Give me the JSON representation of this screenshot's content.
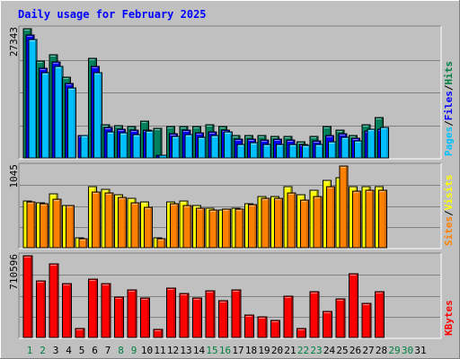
{
  "chart_data": [
    {
      "type": "bar",
      "title": "Daily usage for February 2025",
      "ymax_label": "27343",
      "ylim": [
        0,
        27343
      ],
      "grid": true,
      "x_labels": [
        "1",
        "2",
        "3",
        "4",
        "5",
        "6",
        "7",
        "8",
        "9",
        "10",
        "11",
        "12",
        "13",
        "14",
        "15",
        "16",
        "17",
        "18",
        "19",
        "20",
        "21",
        "22",
        "23",
        "24",
        "25",
        "26",
        "27",
        "28",
        "29",
        "30",
        "31"
      ],
      "weekend_days": [
        1,
        2,
        8,
        9,
        15,
        16,
        22,
        23,
        29,
        30
      ],
      "axis_legend": [
        {
          "label": "Pages",
          "color": "#00c0ff"
        },
        {
          "label": "/",
          "color": "#000000"
        },
        {
          "label": "Files",
          "color": "#0000ff"
        },
        {
          "label": "/",
          "color": "#000000"
        },
        {
          "label": "Hits",
          "color": "#008040"
        }
      ],
      "series": [
        {
          "name": "Hits",
          "color": "#00805c",
          "values": [
            27343,
            20500,
            21900,
            17000,
            null,
            21000,
            7000,
            6800,
            6700,
            7800,
            6300,
            6700,
            6600,
            6600,
            7000,
            6600,
            4800,
            4800,
            4700,
            4600,
            4500,
            3500,
            4500,
            6600,
            5900,
            4800,
            7000,
            8600
          ]
        },
        {
          "name": "Files",
          "color": "#0000ff",
          "values": [
            26100,
            19000,
            20400,
            15700,
            4800,
            19300,
            6400,
            6100,
            5800,
            5900,
            600,
            5200,
            5800,
            5300,
            5600,
            5800,
            4000,
            4000,
            3800,
            4000,
            3800,
            2900,
            3600,
            4700,
            5100,
            4100,
            5700,
            6100
          ]
        },
        {
          "name": "Pages",
          "color": "#00bfff",
          "values": [
            25000,
            18100,
            19400,
            14800,
            4800,
            18100,
            5500,
            5400,
            4900,
            5700,
            600,
            4500,
            5000,
            4400,
            4800,
            5600,
            2900,
            3300,
            2800,
            2900,
            2800,
            2700,
            2800,
            3500,
            4300,
            3700,
            6000,
            6400
          ]
        }
      ]
    },
    {
      "type": "bar",
      "ymax_label": "1045",
      "ylim": [
        0,
        1045
      ],
      "grid": true,
      "axis_legend": [
        {
          "label": "Sites",
          "color": "#ff8000"
        },
        {
          "label": "/",
          "color": "#000000"
        },
        {
          "label": "Visits",
          "color": "#ffff00"
        }
      ],
      "series": [
        {
          "name": "Visits",
          "color": "#ffff00",
          "values": [
            600,
            570,
            690,
            540,
            130,
            780,
            750,
            680,
            630,
            580,
            130,
            590,
            600,
            540,
            500,
            480,
            500,
            560,
            660,
            660,
            785,
            680,
            730,
            860,
            890,
            780,
            785,
            780
          ]
        },
        {
          "name": "Sites",
          "color": "#ff8000",
          "values": [
            580,
            560,
            620,
            540,
            120,
            710,
            700,
            640,
            570,
            520,
            120,
            560,
            540,
            510,
            480,
            490,
            490,
            550,
            630,
            630,
            700,
            610,
            650,
            780,
            1045,
            720,
            730,
            730
          ]
        }
      ]
    },
    {
      "type": "bar",
      "ymax_label": "710596",
      "ylim": [
        0,
        710596
      ],
      "grid": true,
      "axis_legend": [
        {
          "label": "KBytes",
          "color": "#ff0000"
        }
      ],
      "series": [
        {
          "name": "KBytes",
          "color": "#ff0000",
          "values": [
            710596,
            493000,
            638000,
            470000,
            80000,
            510000,
            470000,
            355000,
            415000,
            345000,
            70000,
            428000,
            380000,
            345000,
            407000,
            320000,
            413000,
            192000,
            183000,
            145000,
            362000,
            80000,
            402000,
            225000,
            335000,
            555000,
            300000,
            400000
          ]
        }
      ]
    }
  ]
}
